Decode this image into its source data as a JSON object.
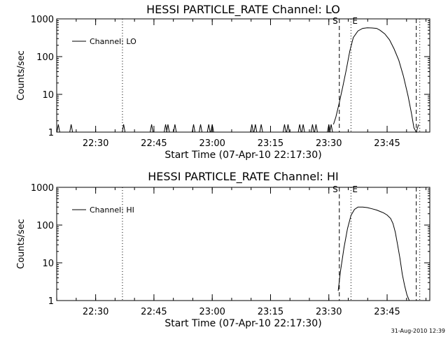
{
  "timestamp": "31-Aug-2010 12:39",
  "colors": {
    "foreground": "#000000",
    "background": "#ffffff"
  },
  "chart_data": [
    {
      "type": "line",
      "title": "HESSI PARTICLE_RATE Channel: LO",
      "xlabel": "Start Time (07-Apr-10 22:17:30)",
      "ylabel": "Counts/sec",
      "yscale": "log",
      "xlim": [
        22.333,
        23.933
      ],
      "ylim": [
        1,
        1000
      ],
      "x_ticks": [
        22.5,
        22.75,
        23.0,
        23.25,
        23.5,
        23.75
      ],
      "x_tick_labels": [
        "22:30",
        "22:45",
        "23:00",
        "23:15",
        "23:30",
        "23:45"
      ],
      "y_ticks": [
        1,
        10,
        100,
        1000
      ],
      "y_tick_labels": [
        "1",
        "10",
        "100",
        "1000"
      ],
      "legend": {
        "label": "Channel: LO",
        "position": "top-left"
      },
      "vlines": [
        {
          "x": 22.615,
          "style": "dotted"
        },
        {
          "x": 23.545,
          "style": "dashed",
          "label": "S"
        },
        {
          "x": 23.595,
          "style": "dotted",
          "label": "E"
        },
        {
          "x": 23.875,
          "style": "dashed"
        },
        {
          "x": 23.89,
          "style": "dotted"
        }
      ],
      "spikes": [
        22.34,
        22.395,
        22.62,
        22.74,
        22.8,
        22.81,
        22.84,
        22.92,
        22.95,
        22.985,
        23.0,
        23.17,
        23.185,
        23.21,
        23.31,
        23.325,
        23.375,
        23.39,
        23.43,
        23.445,
        23.5,
        23.51
      ],
      "series": [
        {
          "x": [
            23.52,
            23.53,
            23.545,
            23.56,
            23.575,
            23.59,
            23.605,
            23.625,
            23.645,
            23.665,
            23.685,
            23.705,
            23.72,
            23.74,
            23.76,
            23.78,
            23.8,
            23.82,
            23.84,
            23.855,
            23.865,
            23.875,
            23.885
          ],
          "y": [
            1.6,
            2.5,
            6,
            16,
            45,
            140,
            320,
            480,
            560,
            580,
            575,
            560,
            500,
            400,
            280,
            160,
            80,
            30,
            9,
            3,
            1.3,
            1.0,
            1.6
          ]
        }
      ]
    },
    {
      "type": "line",
      "title": "HESSI PARTICLE_RATE Channel: HI",
      "xlabel": "Start Time (07-Apr-10 22:17:30)",
      "ylabel": "Counts/sec",
      "yscale": "log",
      "xlim": [
        22.333,
        23.933
      ],
      "ylim": [
        1,
        1000
      ],
      "x_ticks": [
        22.5,
        22.75,
        23.0,
        23.25,
        23.5,
        23.75
      ],
      "x_tick_labels": [
        "22:30",
        "22:45",
        "23:00",
        "23:15",
        "23:30",
        "23:45"
      ],
      "y_ticks": [
        1,
        10,
        100,
        1000
      ],
      "y_tick_labels": [
        "1",
        "10",
        "100",
        "1000"
      ],
      "legend": {
        "label": "Channel: HI",
        "position": "top-left"
      },
      "vlines": [
        {
          "x": 22.615,
          "style": "dotted"
        },
        {
          "x": 23.545,
          "style": "dashed",
          "label": "S"
        },
        {
          "x": 23.595,
          "style": "dotted",
          "label": "E"
        },
        {
          "x": 23.875,
          "style": "dashed"
        },
        {
          "x": 23.89,
          "style": "dotted"
        }
      ],
      "spikes": [],
      "series": [
        {
          "x": [
            23.54,
            23.55,
            23.565,
            23.58,
            23.595,
            23.61,
            23.625,
            23.645,
            23.665,
            23.685,
            23.705,
            23.72,
            23.735,
            23.75,
            23.765,
            23.775,
            23.785,
            23.795,
            23.805,
            23.815,
            23.825,
            23.835,
            23.845
          ],
          "y": [
            1.8,
            6,
            25,
            80,
            180,
            260,
            300,
            300,
            290,
            270,
            250,
            230,
            210,
            185,
            150,
            110,
            65,
            30,
            13,
            5,
            2.5,
            1.4,
            1.0
          ]
        }
      ]
    }
  ]
}
